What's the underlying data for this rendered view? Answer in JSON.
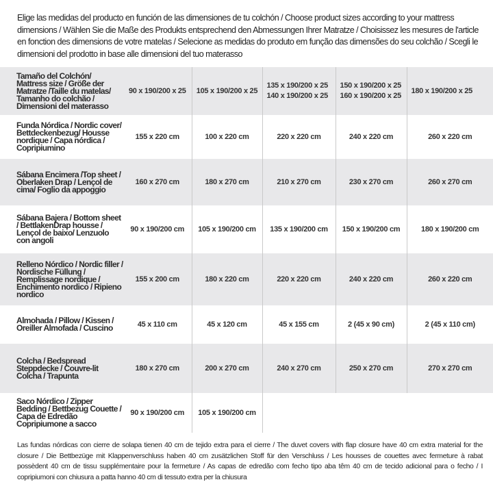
{
  "intro": "Elige las medidas del producto en función de las dimensiones de tu colchón / Choose product sizes according to your mattress dimensions / Wählen Sie die Maße des Produkts entsprechend den Abmessungen Ihrer Matratze / Choisissez les mesures de l'article en fonction des dimensions de votre matelas / Selecione as medidas do produto em função das dimensões do seu colchão / Scegli le dimensioni del prodotto in base alle dimensioni del tuo materasso",
  "table": {
    "header": {
      "label": "Tamaño del Colchón/ Mattress size / Größe der Matratze /Taille du matelas/ Tamanho do colchão / Dimensioni del materasso",
      "sizes": [
        "90 x 190/200 x 25",
        "105 x 190/200 x 25",
        "135 x 190/200 x 25",
        "140 x 190/200 x 25",
        "150 x 190/200 x 25",
        "160 x 190/200 x 25",
        "180 x 190/200 x 25"
      ]
    },
    "rows": [
      {
        "label": "Funda Nórdica /  Nordic cover/ Bettdeckenbezug/ Housse nordique  / Capa nórdica / Copripiumino",
        "values": [
          "155 x 220 cm",
          "100 x 220 cm",
          "220 x 220 cm",
          "240 x 220 cm",
          "260 x 220 cm"
        ]
      },
      {
        "label": "Sábana Encimera /Top sheet / Oberlaken Drap / Lençol de cima/ Foglio da appoggio",
        "values": [
          "160 x 270 cm",
          "180 x 270 cm",
          "210 x 270 cm",
          "230 x 270 cm",
          "260 x 270 cm"
        ]
      },
      {
        "label": "Sábana Bajera / Bottom sheet / BettlakenDrap housse / Lençol de baixo/ Lenzuolo con angoli",
        "values": [
          "90 x 190/200 cm",
          "105 x 190/200 cm",
          "135 x 190/200 cm",
          "150 x 190/200 cm",
          "180 x 190/200 cm"
        ]
      },
      {
        "label": "Relleno Nórdico / Nordic filler / Nordische Füllung / Remplissage nordique / Enchimento nordico / Ripieno nordico",
        "values": [
          "155 x 200 cm",
          "180 x 220 cm",
          "220 x 220 cm",
          "240 x 220 cm",
          "260 x 220 cm"
        ]
      },
      {
        "label": "Almohada  / Pillow / Kissen / Oreiller Almofada / Cuscino",
        "values": [
          "45 x 110 cm",
          "45 x 120 cm",
          "45 x 155 cm",
          "2 (45 x 90 cm)",
          "2 (45 x 110 cm)"
        ]
      },
      {
        "label": "Colcha / Bedspread Steppdecke / Couvre-lit Colcha / Trapunta",
        "values": [
          "180 x 270 cm",
          "200 x 270 cm",
          "240 x 270 cm",
          "250 x 270 cm",
          "270 x 270 cm"
        ]
      },
      {
        "label": "Saco Nórdico / Zipper Bedding / Bettbezug Couette  / Capa de Edredão Copripiumone a sacco",
        "values": [
          "90 x 190/200 cm",
          "105 x 190/200 cm",
          "",
          "",
          ""
        ]
      }
    ]
  },
  "footnote": "Las fundas nórdicas con cierre de solapa tienen 40 cm de tejido extra para el cierre  / The duvet covers with flap closure have 40 cm extra material for the closure / Die Bettbezüge mit Klappenverschluss haben 40 cm zusätzlichen Stoff für den Verschluss / Les housses de couettes avec fermeture à rabat possèdent 40 cm de tissu supplémentaire pour la fermeture / As capas de edredão com fecho tipo aba têm 40 cm de tecido adicional para o fecho / I copripiumoni con chiusura a patta hanno 40 cm di tessuto extra per la chiusura"
}
